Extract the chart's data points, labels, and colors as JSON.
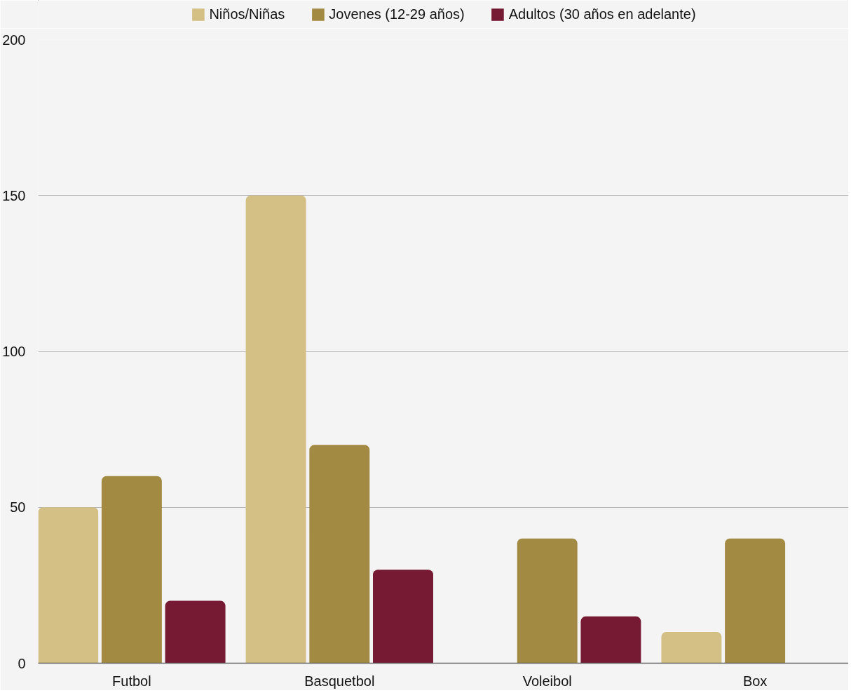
{
  "chart_data": {
    "type": "bar",
    "categories": [
      "Futbol",
      "Basquetbol",
      "Voleibol",
      "Box"
    ],
    "series": [
      {
        "name": "Niños/Niñas",
        "color": "#d4c085",
        "values": [
          50,
          150,
          null,
          10
        ]
      },
      {
        "name": "Jovenes (12-29 años)",
        "color": "#a38a42",
        "values": [
          60,
          70,
          40,
          40
        ]
      },
      {
        "name": "Adultos (30 años en adelante)",
        "color": "#761932",
        "values": [
          20,
          30,
          15,
          null
        ]
      }
    ],
    "ylim": [
      0,
      200
    ],
    "yticks": [
      0,
      50,
      100,
      150,
      200
    ],
    "grid": "y",
    "legend": "top"
  }
}
